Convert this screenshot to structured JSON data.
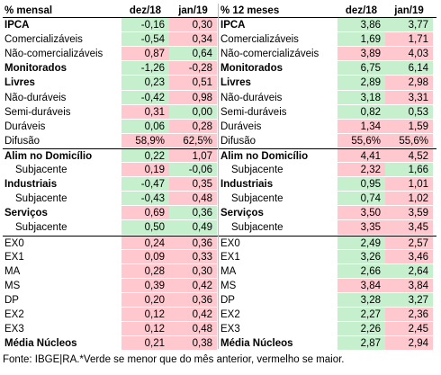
{
  "colors": {
    "green": "#c6efce",
    "red": "#ffc7ce"
  },
  "left": {
    "header": {
      "label": "% mensal",
      "c1": "dez/18",
      "c2": "jan/19"
    },
    "rows": [
      {
        "label": "IPCA",
        "bold": true,
        "indent": false,
        "v1": "-0,16",
        "c1": "g",
        "v2": "0,30",
        "c2": "r",
        "sep": false
      },
      {
        "label": "Comercializáveis",
        "bold": false,
        "indent": false,
        "v1": "-0,54",
        "c1": "g",
        "v2": "0,34",
        "c2": "r",
        "sep": false
      },
      {
        "label": "Não-comercializáveis",
        "bold": false,
        "indent": false,
        "v1": "0,87",
        "c1": "r",
        "v2": "0,64",
        "c2": "g",
        "sep": false
      },
      {
        "label": "Monitorados",
        "bold": true,
        "indent": false,
        "v1": "-1,26",
        "c1": "g",
        "v2": "-0,28",
        "c2": "r",
        "sep": false
      },
      {
        "label": "Livres",
        "bold": true,
        "indent": false,
        "v1": "0,23",
        "c1": "g",
        "v2": "0,51",
        "c2": "r",
        "sep": false
      },
      {
        "label": "Não-duráveis",
        "bold": false,
        "indent": false,
        "v1": "-0,42",
        "c1": "g",
        "v2": "0,98",
        "c2": "r",
        "sep": false
      },
      {
        "label": "Semi-duráveis",
        "bold": false,
        "indent": false,
        "v1": "0,31",
        "c1": "r",
        "v2": "0,00",
        "c2": "g",
        "sep": false
      },
      {
        "label": "Duráveis",
        "bold": false,
        "indent": false,
        "v1": "0,06",
        "c1": "g",
        "v2": "0,28",
        "c2": "r",
        "sep": false
      },
      {
        "label": "Difusão",
        "bold": false,
        "indent": false,
        "v1": "58,9%",
        "c1": "r",
        "v2": "62,5%",
        "c2": "r",
        "sep": false
      },
      {
        "label": "Alim no Domicílio",
        "bold": true,
        "indent": false,
        "v1": "0,22",
        "c1": "g",
        "v2": "1,07",
        "c2": "r",
        "sep": true
      },
      {
        "label": "Subjacente",
        "bold": false,
        "indent": true,
        "v1": "0,19",
        "c1": "r",
        "v2": "-0,06",
        "c2": "g",
        "sep": false
      },
      {
        "label": "Industriais",
        "bold": true,
        "indent": false,
        "v1": "-0,47",
        "c1": "g",
        "v2": "0,35",
        "c2": "r",
        "sep": false
      },
      {
        "label": "Subjacente",
        "bold": false,
        "indent": true,
        "v1": "-0,43",
        "c1": "g",
        "v2": "0,48",
        "c2": "r",
        "sep": false
      },
      {
        "label": "Serviços",
        "bold": true,
        "indent": false,
        "v1": "0,69",
        "c1": "r",
        "v2": "0,36",
        "c2": "g",
        "sep": false
      },
      {
        "label": "Subjacente",
        "bold": false,
        "indent": true,
        "v1": "0,50",
        "c1": "g",
        "v2": "0,49",
        "c2": "g",
        "sep": false
      },
      {
        "label": "EX0",
        "bold": false,
        "indent": false,
        "v1": "0,24",
        "c1": "r",
        "v2": "0,36",
        "c2": "r",
        "sep": true
      },
      {
        "label": "EX1",
        "bold": false,
        "indent": false,
        "v1": "0,09",
        "c1": "r",
        "v2": "0,33",
        "c2": "r",
        "sep": false
      },
      {
        "label": "MA",
        "bold": false,
        "indent": false,
        "v1": "0,28",
        "c1": "r",
        "v2": "0,30",
        "c2": "r",
        "sep": false
      },
      {
        "label": "MS",
        "bold": false,
        "indent": false,
        "v1": "0,39",
        "c1": "r",
        "v2": "0,42",
        "c2": "r",
        "sep": false
      },
      {
        "label": "DP",
        "bold": false,
        "indent": false,
        "v1": "0,20",
        "c1": "r",
        "v2": "0,36",
        "c2": "r",
        "sep": false
      },
      {
        "label": "EX2",
        "bold": false,
        "indent": false,
        "v1": "0,12",
        "c1": "r",
        "v2": "0,42",
        "c2": "r",
        "sep": false
      },
      {
        "label": "EX3",
        "bold": false,
        "indent": false,
        "v1": "0,12",
        "c1": "r",
        "v2": "0,48",
        "c2": "r",
        "sep": false
      },
      {
        "label": "Média Núcleos",
        "bold": true,
        "indent": false,
        "v1": "0,21",
        "c1": "r",
        "v2": "0,38",
        "c2": "r",
        "sep": false
      }
    ]
  },
  "right": {
    "header": {
      "label": "% 12 meses",
      "c1": "dez/18",
      "c2": "jan/19"
    },
    "rows": [
      {
        "label": "IPCA",
        "bold": true,
        "indent": false,
        "v1": "3,86",
        "c1": "g",
        "v2": "3,77",
        "c2": "g",
        "sep": false
      },
      {
        "label": "Comercializáveis",
        "bold": false,
        "indent": false,
        "v1": "1,69",
        "c1": "g",
        "v2": "1,71",
        "c2": "r",
        "sep": false
      },
      {
        "label": "Não-comercializáveis",
        "bold": false,
        "indent": false,
        "v1": "3,89",
        "c1": "r",
        "v2": "4,03",
        "c2": "r",
        "sep": false
      },
      {
        "label": "Monitorados",
        "bold": true,
        "indent": false,
        "v1": "6,75",
        "c1": "g",
        "v2": "6,14",
        "c2": "g",
        "sep": false
      },
      {
        "label": "Livres",
        "bold": true,
        "indent": false,
        "v1": "2,89",
        "c1": "g",
        "v2": "2,98",
        "c2": "r",
        "sep": false
      },
      {
        "label": "Não-duráveis",
        "bold": false,
        "indent": false,
        "v1": "3,18",
        "c1": "g",
        "v2": "3,31",
        "c2": "r",
        "sep": false
      },
      {
        "label": "Semi-duráveis",
        "bold": false,
        "indent": false,
        "v1": "0,82",
        "c1": "g",
        "v2": "0,53",
        "c2": "g",
        "sep": false
      },
      {
        "label": "Duráveis",
        "bold": false,
        "indent": false,
        "v1": "1,34",
        "c1": "r",
        "v2": "1,59",
        "c2": "r",
        "sep": false
      },
      {
        "label": "Difusão",
        "bold": false,
        "indent": false,
        "v1": "55,6%",
        "c1": "r",
        "v2": "55,6%",
        "c2": "r",
        "sep": false
      },
      {
        "label": "Alim no Domicílio",
        "bold": true,
        "indent": false,
        "v1": "4,41",
        "c1": "r",
        "v2": "4,52",
        "c2": "r",
        "sep": true
      },
      {
        "label": "Subjacente",
        "bold": false,
        "indent": true,
        "v1": "2,32",
        "c1": "r",
        "v2": "1,66",
        "c2": "g",
        "sep": false
      },
      {
        "label": "Industriais",
        "bold": true,
        "indent": false,
        "v1": "0,95",
        "c1": "g",
        "v2": "1,01",
        "c2": "r",
        "sep": false
      },
      {
        "label": "Subjacente",
        "bold": false,
        "indent": true,
        "v1": "0,74",
        "c1": "g",
        "v2": "1,02",
        "c2": "r",
        "sep": false
      },
      {
        "label": "Serviços",
        "bold": true,
        "indent": false,
        "v1": "3,50",
        "c1": "r",
        "v2": "3,59",
        "c2": "r",
        "sep": false
      },
      {
        "label": "Subjacente",
        "bold": false,
        "indent": true,
        "v1": "3,35",
        "c1": "r",
        "v2": "3,45",
        "c2": "r",
        "sep": false
      },
      {
        "label": "EX0",
        "bold": false,
        "indent": false,
        "v1": "2,49",
        "c1": "g",
        "v2": "2,57",
        "c2": "r",
        "sep": true
      },
      {
        "label": "EX1",
        "bold": false,
        "indent": false,
        "v1": "3,26",
        "c1": "g",
        "v2": "3,46",
        "c2": "r",
        "sep": false
      },
      {
        "label": "MA",
        "bold": false,
        "indent": false,
        "v1": "2,66",
        "c1": "g",
        "v2": "2,64",
        "c2": "g",
        "sep": false
      },
      {
        "label": "MS",
        "bold": false,
        "indent": false,
        "v1": "3,84",
        "c1": "r",
        "v2": "3,84",
        "c2": "r",
        "sep": false
      },
      {
        "label": "DP",
        "bold": false,
        "indent": false,
        "v1": "3,28",
        "c1": "g",
        "v2": "3,27",
        "c2": "g",
        "sep": false
      },
      {
        "label": "EX2",
        "bold": false,
        "indent": false,
        "v1": "2,27",
        "c1": "g",
        "v2": "2,36",
        "c2": "r",
        "sep": false
      },
      {
        "label": "EX3",
        "bold": false,
        "indent": false,
        "v1": "2,26",
        "c1": "g",
        "v2": "2,45",
        "c2": "r",
        "sep": false
      },
      {
        "label": "Média Núcleos",
        "bold": true,
        "indent": false,
        "v1": "2,87",
        "c1": "g",
        "v2": "2,94",
        "c2": "r",
        "sep": false
      }
    ]
  },
  "footer": "Fonte: IBGE|RA.*Verde se menor que do mês anterior, vermelho se maior."
}
